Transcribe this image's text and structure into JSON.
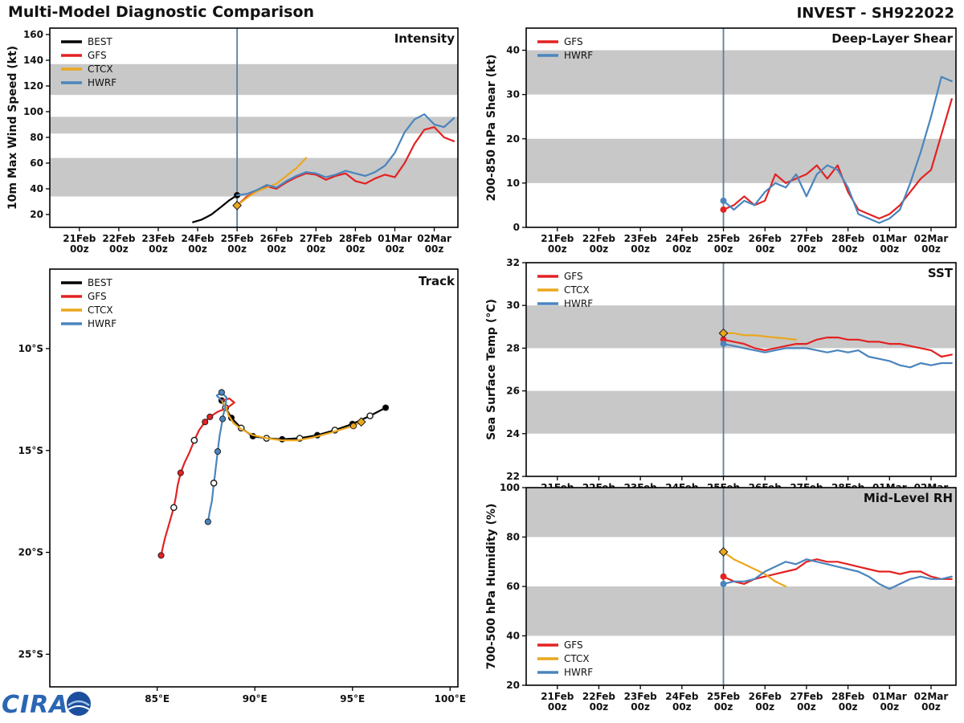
{
  "header": {
    "title": "Multi-Model Diagnostic Comparison",
    "storm_id": "INVEST - SH922022"
  },
  "footer": {
    "logo_text": "CIRA"
  },
  "colors": {
    "best": "#000000",
    "gfs": "#e32222",
    "ctcx": "#eaa71e",
    "hwrf": "#4a85bd",
    "band": "#c8c8c8",
    "vline": "#5c7f9a"
  },
  "time_axis": {
    "ticks": [
      "21Feb",
      "22Feb",
      "23Feb",
      "24Feb",
      "25Feb",
      "26Feb",
      "27Feb",
      "28Feb",
      "01Mar",
      "02Mar"
    ],
    "sub": "00z"
  },
  "chart_data": [
    {
      "id": "intensity",
      "type": "line",
      "title": "Intensity",
      "ylabel": "10m Max Wind Speed (kt)",
      "xlim": [
        -0.75,
        9.6
      ],
      "ylim": [
        10,
        165
      ],
      "yticks": [
        20,
        40,
        60,
        80,
        100,
        120,
        140,
        160
      ],
      "bands": [
        [
          34,
          64
        ],
        [
          83,
          96
        ],
        [
          113,
          137
        ]
      ],
      "vline_t": 4,
      "legend": {
        "pos": "tl",
        "items": [
          "BEST",
          "GFS",
          "CTCX",
          "HWRF"
        ]
      },
      "series": [
        {
          "name": "BEST",
          "color_key": "best",
          "marker_end": "circle",
          "points": [
            [
              2.88,
              14
            ],
            [
              3.1,
              16
            ],
            [
              3.35,
              20
            ],
            [
              3.6,
              26
            ],
            [
              3.8,
              31
            ],
            [
              4.0,
              35
            ]
          ]
        },
        {
          "name": "GFS",
          "color_key": "gfs",
          "t0": 4,
          "dt": 0.25,
          "values": [
            27,
            34,
            38,
            42,
            40,
            45,
            49,
            52,
            51,
            47,
            50,
            52,
            46,
            44,
            48,
            51,
            49,
            60,
            75,
            86,
            88,
            80,
            77
          ]
        },
        {
          "name": "CTCX",
          "color_key": "ctcx",
          "t0": 4,
          "dt": 0.25,
          "marker_start": "diamond",
          "values": [
            27,
            33,
            38,
            41,
            44,
            50,
            56,
            64
          ]
        },
        {
          "name": "HWRF",
          "color_key": "hwrf",
          "t0": 4,
          "dt": 0.25,
          "values": [
            35,
            36,
            39,
            43,
            41,
            46,
            50,
            53,
            52,
            49,
            51,
            54,
            52,
            50,
            53,
            58,
            68,
            84,
            94,
            98,
            90,
            88,
            95
          ]
        }
      ]
    },
    {
      "id": "track",
      "type": "track",
      "title": "Track",
      "xlim": [
        79.5,
        100.4
      ],
      "ylim": [
        -26.6,
        -6.1
      ],
      "xticks": [
        {
          "v": 85,
          "label": "85°E"
        },
        {
          "v": 90,
          "label": "90°E"
        },
        {
          "v": 95,
          "label": "95°E"
        },
        {
          "v": 100,
          "label": "100°E"
        }
      ],
      "yticks": [
        {
          "v": -10,
          "label": "10°S"
        },
        {
          "v": -15,
          "label": "15°S"
        },
        {
          "v": -20,
          "label": "20°S"
        },
        {
          "v": -25,
          "label": "25°S"
        }
      ],
      "legend": {
        "pos": "tl",
        "items": [
          "BEST",
          "GFS",
          "CTCX",
          "HWRF"
        ]
      },
      "series": [
        {
          "name": "BEST",
          "color_key": "best",
          "points": [
            [
              96.7,
              -12.9
            ],
            [
              95.9,
              -13.3
            ],
            [
              95.0,
              -13.7
            ],
            [
              94.1,
              -14.0
            ],
            [
              93.2,
              -14.25
            ],
            [
              92.3,
              -14.4
            ],
            [
              91.4,
              -14.45
            ],
            [
              90.6,
              -14.4
            ],
            [
              89.9,
              -14.3
            ],
            [
              89.3,
              -13.9
            ],
            [
              88.8,
              -13.4
            ],
            [
              88.5,
              -12.9
            ],
            [
              88.3,
              -12.55
            ]
          ],
          "markers": [
            {
              "i": 0,
              "t": "filled"
            },
            {
              "i": 1,
              "t": "open"
            },
            {
              "i": 2,
              "t": "filled"
            },
            {
              "i": 3,
              "t": "open"
            },
            {
              "i": 4,
              "t": "filled"
            },
            {
              "i": 5,
              "t": "open"
            },
            {
              "i": 6,
              "t": "filled"
            },
            {
              "i": 7,
              "t": "open"
            },
            {
              "i": 8,
              "t": "filled"
            },
            {
              "i": 9,
              "t": "open"
            },
            {
              "i": 10,
              "t": "filled"
            },
            {
              "i": 11,
              "t": "open"
            },
            {
              "i": 12,
              "t": "filled"
            }
          ]
        },
        {
          "name": "GFS",
          "color_key": "gfs",
          "points": [
            [
              88.3,
              -12.55
            ],
            [
              88.7,
              -12.45
            ],
            [
              88.95,
              -12.65
            ],
            [
              88.6,
              -12.9
            ],
            [
              88.1,
              -13.1
            ],
            [
              87.7,
              -13.35
            ],
            [
              87.45,
              -13.6
            ],
            [
              87.15,
              -14.0
            ],
            [
              86.9,
              -14.5
            ],
            [
              86.65,
              -15.1
            ],
            [
              86.4,
              -15.6
            ],
            [
              86.2,
              -16.1
            ],
            [
              86.05,
              -16.7
            ],
            [
              85.95,
              -17.3
            ],
            [
              85.85,
              -17.8
            ],
            [
              85.7,
              -18.3
            ],
            [
              85.55,
              -18.8
            ],
            [
              85.4,
              -19.3
            ],
            [
              85.3,
              -19.7
            ],
            [
              85.2,
              -20.15
            ]
          ],
          "markers": [
            {
              "i": 5,
              "t": "filled"
            },
            {
              "i": 6,
              "t": "filled"
            },
            {
              "i": 8,
              "t": "open"
            },
            {
              "i": 11,
              "t": "filled"
            },
            {
              "i": 14,
              "t": "open"
            },
            {
              "i": 19,
              "t": "filled"
            }
          ]
        },
        {
          "name": "CTCX",
          "color_key": "ctcx",
          "points": [
            [
              88.3,
              -12.55
            ],
            [
              88.5,
              -12.85
            ],
            [
              88.65,
              -13.25
            ],
            [
              88.9,
              -13.65
            ],
            [
              89.3,
              -13.95
            ],
            [
              89.9,
              -14.25
            ],
            [
              90.6,
              -14.4
            ],
            [
              91.4,
              -14.5
            ],
            [
              92.2,
              -14.5
            ],
            [
              93.0,
              -14.35
            ],
            [
              93.8,
              -14.15
            ],
            [
              94.5,
              -13.95
            ],
            [
              95.05,
              -13.8
            ],
            [
              95.45,
              -13.6
            ]
          ],
          "markers": [
            {
              "i": 12,
              "t": "filled"
            },
            {
              "i": 13,
              "t": "diamond"
            }
          ]
        },
        {
          "name": "HWRF",
          "color_key": "hwrf",
          "points": [
            [
              88.3,
              -12.55
            ],
            [
              88.05,
              -12.3
            ],
            [
              88.3,
              -12.15
            ],
            [
              88.55,
              -12.4
            ],
            [
              88.5,
              -12.75
            ],
            [
              88.42,
              -13.1
            ],
            [
              88.35,
              -13.45
            ],
            [
              88.28,
              -13.85
            ],
            [
              88.2,
              -14.25
            ],
            [
              88.15,
              -14.65
            ],
            [
              88.1,
              -15.05
            ],
            [
              88.05,
              -15.45
            ],
            [
              88.0,
              -15.85
            ],
            [
              87.95,
              -16.25
            ],
            [
              87.9,
              -16.6
            ],
            [
              87.85,
              -17.05
            ],
            [
              87.8,
              -17.5
            ],
            [
              87.7,
              -17.95
            ],
            [
              87.6,
              -18.5
            ]
          ],
          "markers": [
            {
              "i": 2,
              "t": "filled"
            },
            {
              "i": 6,
              "t": "filled"
            },
            {
              "i": 10,
              "t": "filled"
            },
            {
              "i": 14,
              "t": "open"
            },
            {
              "i": 18,
              "t": "filled"
            }
          ]
        }
      ]
    },
    {
      "id": "shear",
      "type": "line",
      "title": "Deep-Layer Shear",
      "ylabel": "200-850 hPa Shear (kt)",
      "xlim": [
        -0.75,
        9.6
      ],
      "ylim": [
        0,
        45
      ],
      "yticks": [
        0,
        10,
        20,
        30,
        40
      ],
      "bands": [
        [
          10,
          20
        ],
        [
          30,
          40
        ]
      ],
      "vline_t": 4,
      "legend": {
        "pos": "tl",
        "items": [
          "GFS",
          "HWRF"
        ]
      },
      "series": [
        {
          "name": "GFS",
          "color_key": "gfs",
          "t0": 4,
          "dt": 0.25,
          "marker_start": "circle",
          "values": [
            4,
            5,
            7,
            5,
            6,
            12,
            10,
            11,
            12,
            14,
            11,
            14,
            8,
            4,
            3,
            2,
            3,
            5,
            8,
            11,
            13,
            21,
            29
          ]
        },
        {
          "name": "HWRF",
          "color_key": "hwrf",
          "t0": 4,
          "dt": 0.25,
          "marker_start": "circle",
          "values": [
            6,
            4,
            6,
            5,
            8,
            10,
            9,
            12,
            7,
            12,
            14,
            13,
            9,
            3,
            2,
            1,
            2,
            4,
            10,
            17,
            25,
            34,
            33
          ]
        }
      ]
    },
    {
      "id": "sst",
      "type": "line",
      "title": "SST",
      "ylabel": "Sea Surface Temp (°C)",
      "xlim": [
        -0.75,
        9.6
      ],
      "ylim": [
        22,
        32
      ],
      "yticks": [
        22,
        24,
        26,
        28,
        30,
        32
      ],
      "bands": [
        [
          24,
          26
        ],
        [
          28,
          30
        ]
      ],
      "vline_t": 4,
      "legend": {
        "pos": "tl",
        "items": [
          "GFS",
          "CTCX",
          "HWRF"
        ]
      },
      "series": [
        {
          "name": "GFS",
          "color_key": "gfs",
          "t0": 4,
          "dt": 0.25,
          "marker_start": "circle",
          "values": [
            28.4,
            28.3,
            28.2,
            28.0,
            27.9,
            28.0,
            28.1,
            28.2,
            28.2,
            28.4,
            28.5,
            28.5,
            28.4,
            28.4,
            28.3,
            28.3,
            28.2,
            28.2,
            28.1,
            28.0,
            27.9,
            27.6,
            27.7
          ]
        },
        {
          "name": "CTCX",
          "color_key": "ctcx",
          "t0": 4,
          "dt": 0.25,
          "marker_start": "diamond",
          "values": [
            28.7,
            28.7,
            28.6,
            28.6,
            28.55,
            28.5,
            28.45,
            28.4
          ]
        },
        {
          "name": "HWRF",
          "color_key": "hwrf",
          "t0": 4,
          "dt": 0.25,
          "marker_start": "circle",
          "values": [
            28.2,
            28.1,
            28.0,
            27.9,
            27.8,
            27.9,
            28.0,
            28.0,
            28.0,
            27.9,
            27.8,
            27.9,
            27.8,
            27.9,
            27.6,
            27.5,
            27.4,
            27.2,
            27.1,
            27.3,
            27.2,
            27.3,
            27.3
          ]
        }
      ]
    },
    {
      "id": "rh",
      "type": "line",
      "title": "Mid-Level RH",
      "ylabel": "700-500 hPa Humidity (%)",
      "xlim": [
        -0.75,
        9.6
      ],
      "ylim": [
        20,
        100
      ],
      "yticks": [
        20,
        40,
        60,
        80,
        100
      ],
      "bands": [
        [
          40,
          60
        ],
        [
          80,
          100
        ]
      ],
      "vline_t": 4,
      "legend": {
        "pos": "bl",
        "items": [
          "GFS",
          "CTCX",
          "HWRF"
        ]
      },
      "series": [
        {
          "name": "GFS",
          "color_key": "gfs",
          "t0": 4,
          "dt": 0.25,
          "marker_start": "circle",
          "values": [
            64,
            62,
            61,
            63,
            64,
            65,
            66,
            67,
            70,
            71,
            70,
            70,
            69,
            68,
            67,
            66,
            66,
            65,
            66,
            66,
            64,
            63,
            63
          ]
        },
        {
          "name": "CTCX",
          "color_key": "ctcx",
          "t0": 4,
          "dt": 0.25,
          "marker_start": "diamond",
          "values": [
            74,
            71,
            69,
            67,
            65,
            62,
            60
          ]
        },
        {
          "name": "HWRF",
          "color_key": "hwrf",
          "t0": 4,
          "dt": 0.25,
          "marker_start": "circle",
          "values": [
            61,
            62,
            62,
            63,
            66,
            68,
            70,
            69,
            71,
            70,
            69,
            68,
            67,
            66,
            64,
            61,
            59,
            61,
            63,
            64,
            63,
            63,
            64
          ]
        }
      ]
    }
  ]
}
